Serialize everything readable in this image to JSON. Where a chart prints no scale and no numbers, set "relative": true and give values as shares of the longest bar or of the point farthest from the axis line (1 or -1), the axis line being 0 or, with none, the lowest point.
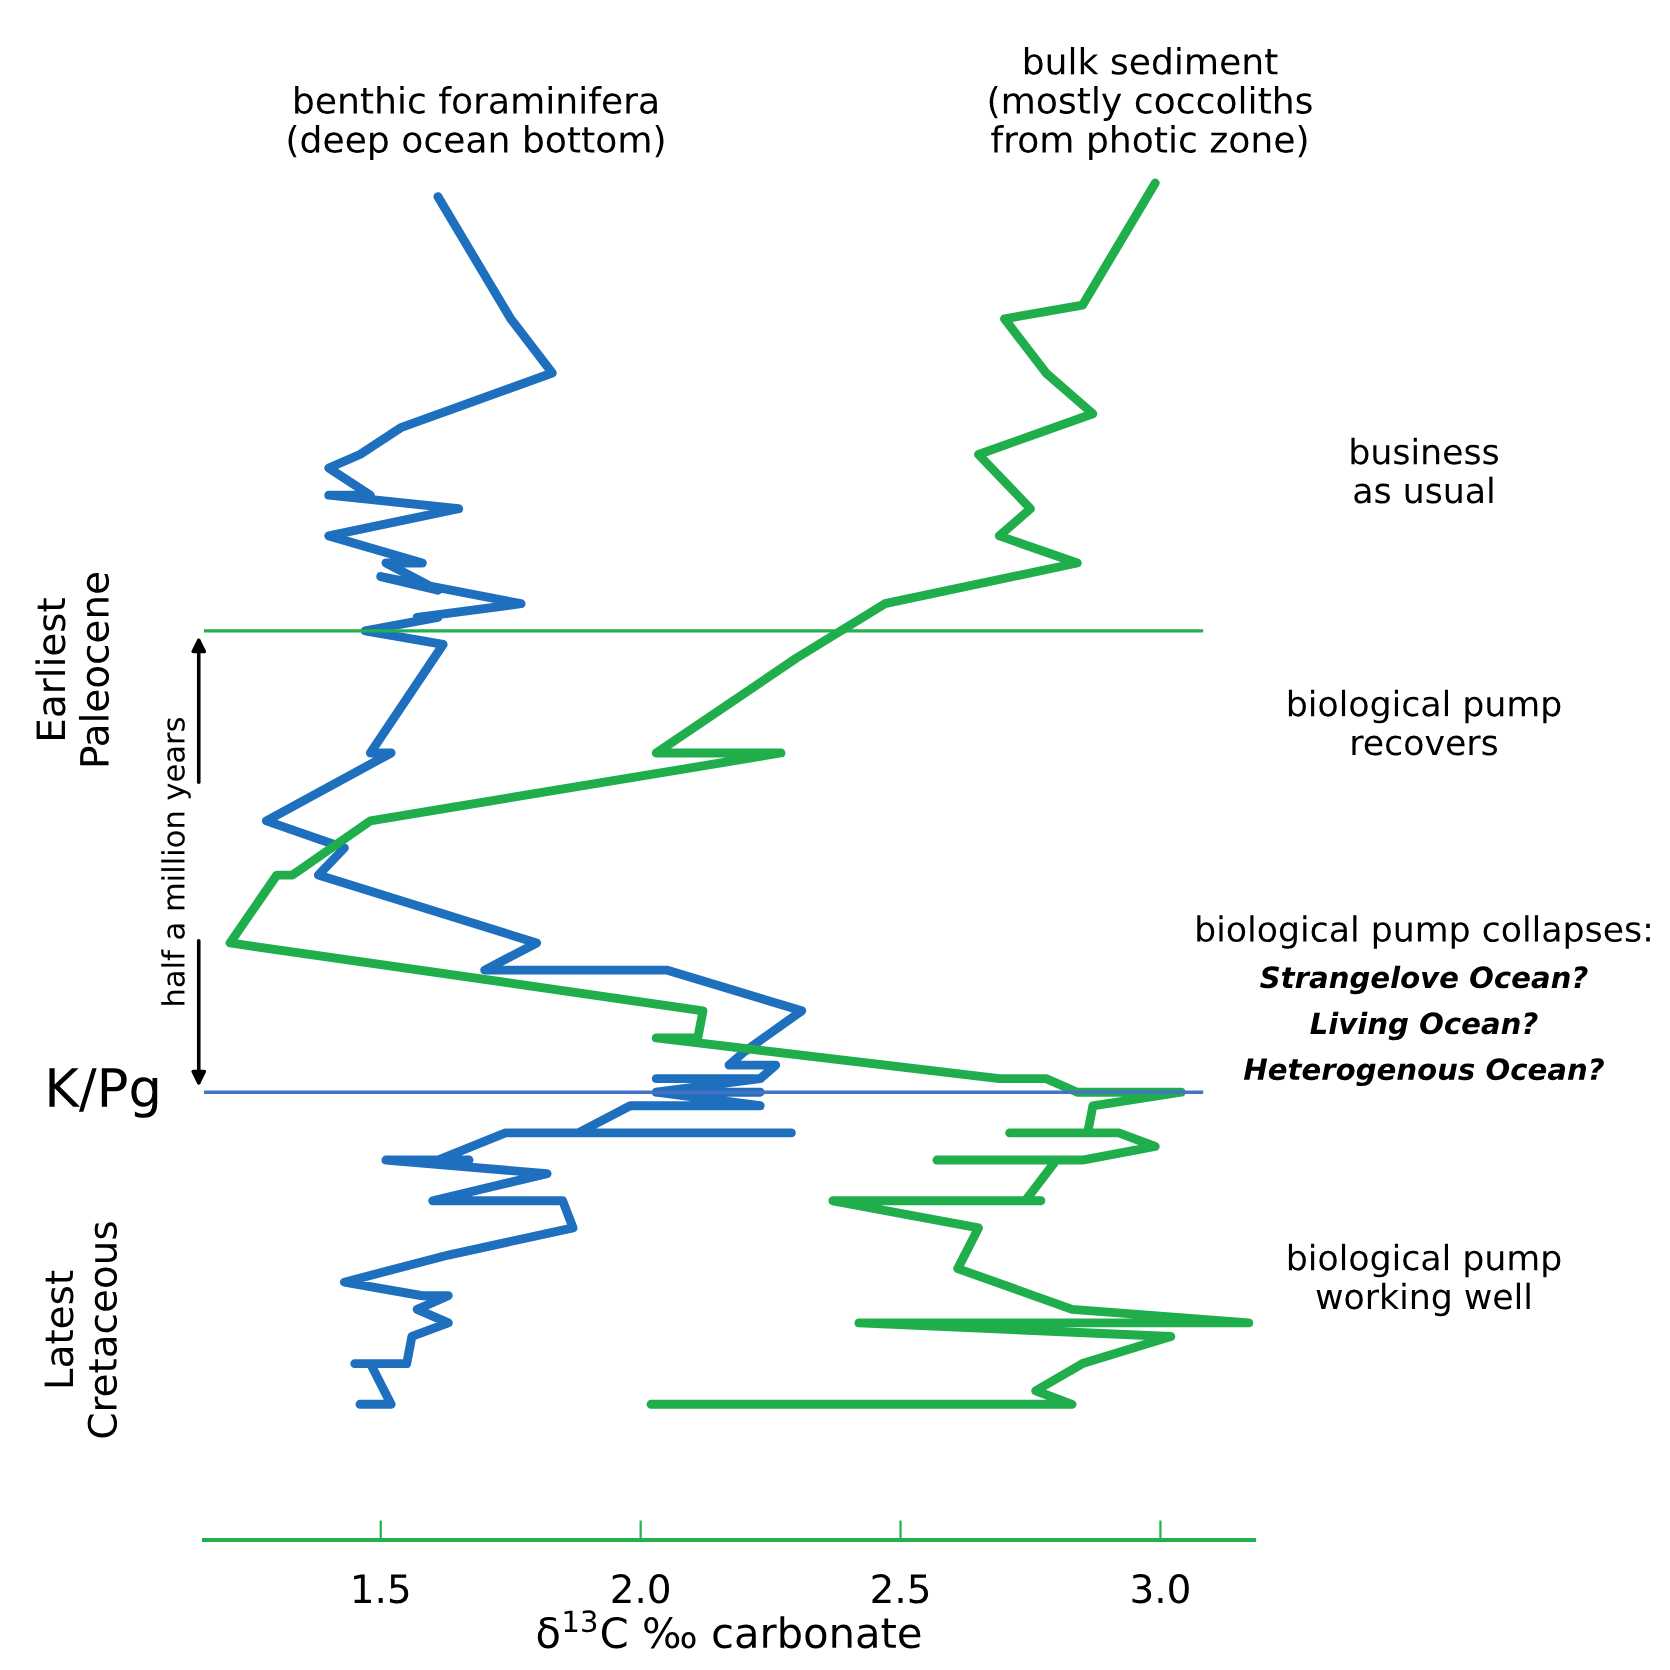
{
  "chart_data": {
    "type": "line",
    "xlabel": "δ$^{13}$C ‰ carbonate",
    "xlim": [
      1.16,
      3.18
    ],
    "xticks": [
      {
        "value": 1.5,
        "label": "1.5"
      },
      {
        "value": 2.0,
        "label": "2.0"
      },
      {
        "value": 2.5,
        "label": "2.5"
      },
      {
        "value": 3.0,
        "label": "3.0"
      }
    ],
    "relative": true,
    "tick_labels": "x",
    "marker": "none",
    "line_style": "solid",
    "series": [
      {
        "name": "benthic foraminifera\n(deep ocean bottom)",
        "color": "#1f6fbf",
        "x": [
          1.61,
          1.75,
          1.83,
          1.54,
          1.46,
          1.4,
          1.48,
          1.4,
          1.65,
          1.4,
          1.58,
          1.51,
          1.61,
          1.5,
          1.77,
          1.57,
          1.61,
          1.47,
          1.62,
          1.48,
          1.52,
          1.28,
          1.43,
          1.38,
          1.8,
          1.7,
          2.05,
          2.31,
          2.2,
          2.17,
          2.26,
          2.23,
          2.03,
          2.23,
          2.03,
          2.23,
          2.03,
          2.23,
          1.98,
          1.88,
          2.29,
          1.74,
          1.61,
          1.67,
          1.51,
          1.82,
          1.6,
          1.75,
          1.85,
          1.87,
          1.63,
          1.43,
          1.58,
          1.63,
          1.57,
          1.63,
          1.56,
          1.55,
          1.45,
          1.48,
          1.52,
          1.46
        ],
        "values": [
          0.99,
          0.9,
          0.86,
          0.82,
          0.8,
          0.79,
          0.77,
          0.77,
          0.76,
          0.74,
          0.72,
          0.72,
          0.7,
          0.71,
          0.69,
          0.68,
          0.68,
          0.67,
          0.66,
          0.58,
          0.58,
          0.53,
          0.51,
          0.49,
          0.44,
          0.42,
          0.42,
          0.39,
          0.36,
          0.35,
          0.35,
          0.34,
          0.34,
          0.34,
          0.33,
          0.33,
          0.33,
          0.32,
          0.32,
          0.3,
          0.3,
          0.3,
          0.28,
          0.28,
          0.28,
          0.27,
          0.25,
          0.25,
          0.25,
          0.23,
          0.21,
          0.19,
          0.18,
          0.18,
          0.17,
          0.16,
          0.15,
          0.13,
          0.13,
          0.13,
          0.1,
          0.1
        ]
      },
      {
        "name": "bulk sediment\n(mostly coccoliths\nfrom photic zone)",
        "color": "#1fae4b",
        "x": [
          2.99,
          2.85,
          2.7,
          2.78,
          2.87,
          2.65,
          2.75,
          2.69,
          2.84,
          2.47,
          2.3,
          2.03,
          2.27,
          1.48,
          1.33,
          1.3,
          1.21,
          2.12,
          2.11,
          2.03,
          2.69,
          2.78,
          2.84,
          3.04,
          2.87,
          2.86,
          2.71,
          2.92,
          2.99,
          2.85,
          2.57,
          2.8,
          2.74,
          2.77,
          2.37,
          2.65,
          2.61,
          2.83,
          3.17,
          2.42,
          3.02,
          2.85,
          2.76,
          2.83,
          2.02
        ],
        "values": [
          1.0,
          0.91,
          0.9,
          0.86,
          0.83,
          0.8,
          0.76,
          0.74,
          0.72,
          0.69,
          0.65,
          0.58,
          0.58,
          0.53,
          0.49,
          0.49,
          0.44,
          0.39,
          0.37,
          0.37,
          0.34,
          0.34,
          0.33,
          0.33,
          0.32,
          0.3,
          0.3,
          0.3,
          0.29,
          0.28,
          0.28,
          0.28,
          0.25,
          0.25,
          0.25,
          0.23,
          0.2,
          0.17,
          0.16,
          0.16,
          0.15,
          0.13,
          0.11,
          0.1,
          0.1
        ]
      }
    ],
    "ref_lines": [
      {
        "axis": "y",
        "value": 0.67,
        "color": "#22b14c"
      },
      {
        "axis": "y",
        "value": 0.33,
        "label": "K/Pg",
        "color": "#4472c4"
      }
    ],
    "annotations": [
      "business\nas usual",
      "biological pump\nrecovers",
      "biological pump collapses:",
      "Strangelove Ocean?",
      "Living Ocean?",
      "Heterogenous Ocean?",
      "biological pump\nworking well",
      "Earliest\nPaleocene",
      "Latest\nCretaceous",
      "half a million years"
    ]
  }
}
